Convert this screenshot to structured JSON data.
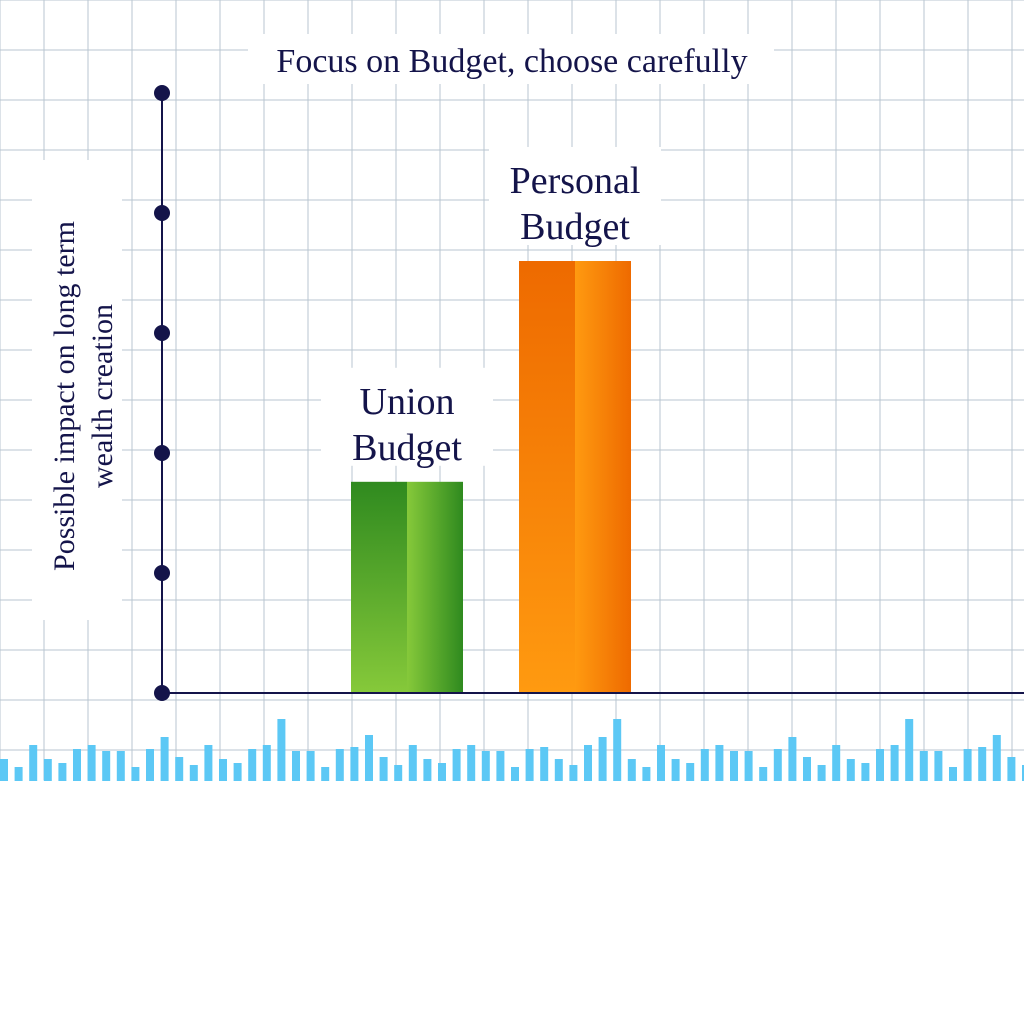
{
  "chart_data": {
    "type": "bar",
    "title": "Focus on Budget, choose carefully",
    "ylabel_lines": [
      "Possible impact on long term",
      "wealth creation"
    ],
    "xlabel": "",
    "categories": [
      "Union Budget",
      "Personal Budget"
    ],
    "category_lines": [
      [
        "Union",
        "Budget"
      ],
      [
        "Personal",
        "Budget"
      ]
    ],
    "values": [
      1.76,
      3.6
    ],
    "ylim": [
      0,
      5
    ],
    "y_ticks": [
      0,
      1,
      2,
      3,
      4,
      5
    ],
    "tick_labels_shown": false,
    "grid": true,
    "legend": "none",
    "colors": {
      "background": "#ffffff",
      "grid_line": "#b9c5d1",
      "axis": "#14144a",
      "union_dark": "#2f8a1f",
      "union_light": "#86c93a",
      "personal_dark": "#ee6a00",
      "personal_light": "#ff9a10",
      "decor_bars": "#5cc8f5"
    }
  }
}
